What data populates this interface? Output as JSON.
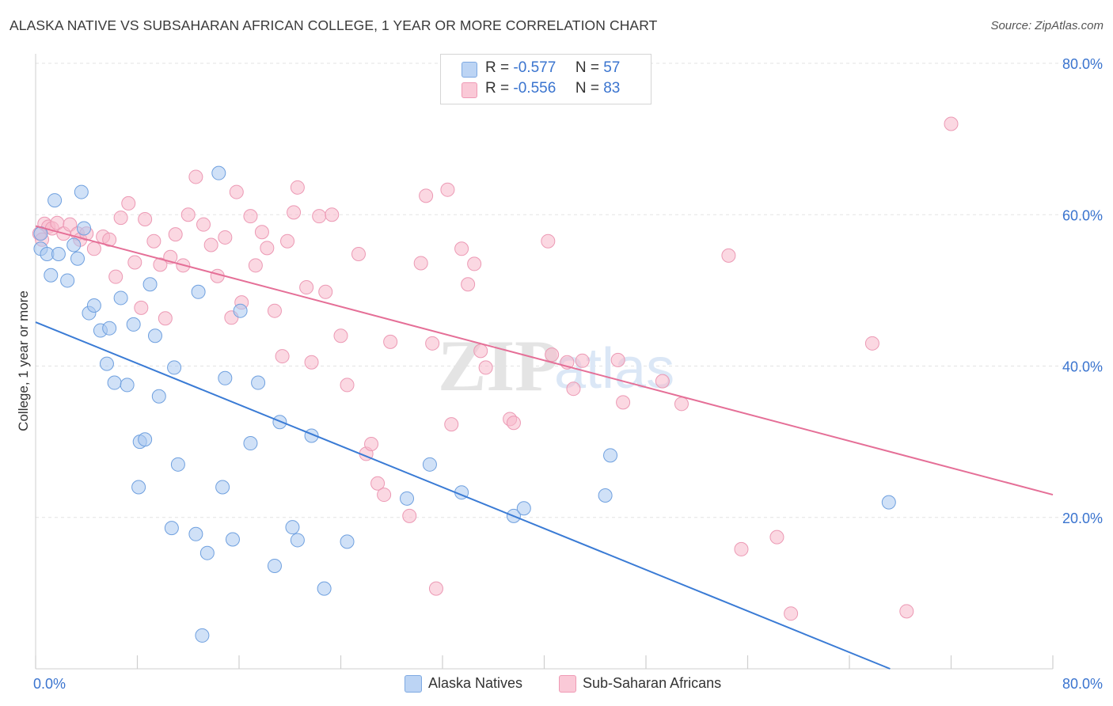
{
  "header": {
    "title": "ALASKA NATIVE VS SUBSAHARAN AFRICAN COLLEGE, 1 YEAR OR MORE CORRELATION CHART",
    "source": "Source: ZipAtlas.com"
  },
  "legend": {
    "r_label": "R =",
    "n_label": "N =",
    "rows": [
      {
        "r": "-0.577",
        "n": "57",
        "color": "#a9c8f0"
      },
      {
        "r": "-0.556",
        "n": "83",
        "color": "#f7b8cb"
      }
    ]
  },
  "bottom_legend": [
    {
      "label": "Alaska Natives",
      "color": "#a9c8f0"
    },
    {
      "label": "Sub-Saharan Africans",
      "color": "#f7b8cb"
    }
  ],
  "axes": {
    "ylabel": "College, 1 year or more",
    "x_tick_left": "0.0%",
    "x_tick_right": "80.0%",
    "y_ticks": [
      "20.0%",
      "40.0%",
      "60.0%",
      "80.0%"
    ]
  },
  "watermark": {
    "part1": "ZIP",
    "part2": "atlas"
  },
  "colors": {
    "blue_line": "#3a7bd5",
    "pink_line": "#e56f97",
    "blue_fill": "#a9c8f0",
    "pink_fill": "#f7b8cb",
    "tick_text": "#3a74cf"
  },
  "chart_data": {
    "type": "scatter",
    "xlim": [
      0,
      80
    ],
    "ylim": [
      0,
      80
    ],
    "grid": true,
    "series": [
      {
        "name": "Alaska Natives",
        "points": [
          [
            0.4,
            55.5
          ],
          [
            0.4,
            57.5
          ],
          [
            0.9,
            54.8
          ],
          [
            1.2,
            52
          ],
          [
            1.5,
            61.9
          ],
          [
            1.8,
            54.8
          ],
          [
            2.5,
            51.3
          ],
          [
            3.0,
            56
          ],
          [
            3.3,
            54.2
          ],
          [
            3.6,
            63
          ],
          [
            3.8,
            58.2
          ],
          [
            4.2,
            47
          ],
          [
            4.6,
            48
          ],
          [
            5.1,
            44.7
          ],
          [
            5.6,
            40.3
          ],
          [
            5.8,
            45
          ],
          [
            6.2,
            37.8
          ],
          [
            6.7,
            49
          ],
          [
            7.2,
            37.5
          ],
          [
            7.7,
            45.5
          ],
          [
            8.1,
            24
          ],
          [
            8.2,
            30
          ],
          [
            8.6,
            30.3
          ],
          [
            9.0,
            50.8
          ],
          [
            9.4,
            44
          ],
          [
            9.7,
            36
          ],
          [
            10.7,
            18.6
          ],
          [
            10.9,
            39.8
          ],
          [
            11.2,
            27
          ],
          [
            12.6,
            17.8
          ],
          [
            12.8,
            49.8
          ],
          [
            13.1,
            4.4
          ],
          [
            13.5,
            15.3
          ],
          [
            14.4,
            65.5
          ],
          [
            14.7,
            24
          ],
          [
            14.9,
            38.4
          ],
          [
            15.5,
            17.1
          ],
          [
            16.1,
            47.3
          ],
          [
            16.9,
            29.8
          ],
          [
            17.5,
            37.8
          ],
          [
            18.8,
            13.6
          ],
          [
            19.2,
            32.6
          ],
          [
            20.2,
            18.7
          ],
          [
            20.6,
            17
          ],
          [
            21.7,
            30.8
          ],
          [
            22.7,
            10.6
          ],
          [
            24.5,
            16.8
          ],
          [
            29.2,
            22.5
          ],
          [
            31,
            27
          ],
          [
            33.5,
            23.3
          ],
          [
            37.6,
            20.2
          ],
          [
            38.4,
            21.2
          ],
          [
            44.8,
            22.9
          ],
          [
            45.2,
            28.2
          ],
          [
            67.1,
            22
          ]
        ]
      },
      {
        "name": "Sub-Saharan Africans",
        "points": [
          [
            0.3,
            57.5
          ],
          [
            0.5,
            56.7
          ],
          [
            0.7,
            58.8
          ],
          [
            1.0,
            58.4
          ],
          [
            1.3,
            58.2
          ],
          [
            1.7,
            58.9
          ],
          [
            2.2,
            57.5
          ],
          [
            2.7,
            58.7
          ],
          [
            3.3,
            57.5
          ],
          [
            3.5,
            56.7
          ],
          [
            4.0,
            57.5
          ],
          [
            4.6,
            55.5
          ],
          [
            5.3,
            57.1
          ],
          [
            5.8,
            56.7
          ],
          [
            6.3,
            51.8
          ],
          [
            6.7,
            59.6
          ],
          [
            7.3,
            61.5
          ],
          [
            7.8,
            53.7
          ],
          [
            8.3,
            47.7
          ],
          [
            8.6,
            59.4
          ],
          [
            9.3,
            56.5
          ],
          [
            9.8,
            53.4
          ],
          [
            10.2,
            46.3
          ],
          [
            10.6,
            54.4
          ],
          [
            11.0,
            57.4
          ],
          [
            11.6,
            53.3
          ],
          [
            12.0,
            60
          ],
          [
            12.6,
            65
          ],
          [
            13.2,
            58.7
          ],
          [
            13.8,
            56
          ],
          [
            14.3,
            51.9
          ],
          [
            14.9,
            57
          ],
          [
            15.4,
            46.4
          ],
          [
            15.8,
            63
          ],
          [
            16.2,
            48.4
          ],
          [
            16.9,
            59.8
          ],
          [
            17.3,
            53.3
          ],
          [
            17.8,
            57.7
          ],
          [
            18.2,
            55.6
          ],
          [
            18.8,
            47.3
          ],
          [
            19.4,
            41.3
          ],
          [
            19.8,
            56.5
          ],
          [
            20.3,
            60.3
          ],
          [
            20.6,
            63.6
          ],
          [
            21.3,
            50.4
          ],
          [
            21.7,
            40.5
          ],
          [
            22.3,
            59.8
          ],
          [
            22.8,
            49.8
          ],
          [
            23.3,
            60
          ],
          [
            24.0,
            44
          ],
          [
            24.5,
            37.5
          ],
          [
            25.4,
            54.8
          ],
          [
            26.0,
            28.4
          ],
          [
            26.4,
            29.7
          ],
          [
            26.9,
            24.5
          ],
          [
            27.4,
            23
          ],
          [
            27.9,
            43.2
          ],
          [
            29.4,
            20.2
          ],
          [
            30.3,
            53.6
          ],
          [
            30.7,
            62.5
          ],
          [
            31.2,
            43
          ],
          [
            31.5,
            10.6
          ],
          [
            32.4,
            63.3
          ],
          [
            32.7,
            32.3
          ],
          [
            33.5,
            55.5
          ],
          [
            34.0,
            50.8
          ],
          [
            34.5,
            53.5
          ],
          [
            35.0,
            42
          ],
          [
            35.4,
            39.8
          ],
          [
            37.3,
            33
          ],
          [
            37.6,
            32.5
          ],
          [
            40.3,
            56.5
          ],
          [
            40.6,
            41.5
          ],
          [
            41.8,
            40.5
          ],
          [
            42.3,
            37
          ],
          [
            43.0,
            40.7
          ],
          [
            45.8,
            40.8
          ],
          [
            46.2,
            35.2
          ],
          [
            49.3,
            38
          ],
          [
            50.8,
            35
          ],
          [
            54.5,
            54.6
          ],
          [
            55.5,
            15.8
          ],
          [
            58.3,
            17.4
          ],
          [
            59.4,
            7.3
          ],
          [
            65.8,
            43
          ],
          [
            68.5,
            7.6
          ],
          [
            72,
            72
          ]
        ]
      }
    ],
    "trendlines": [
      {
        "series": "Alaska Natives",
        "from": [
          0,
          45.8
        ],
        "to": [
          67.2,
          0
        ]
      },
      {
        "series": "Sub-Saharan Africans",
        "from": [
          0,
          58.5
        ],
        "to": [
          80,
          23
        ]
      }
    ]
  }
}
